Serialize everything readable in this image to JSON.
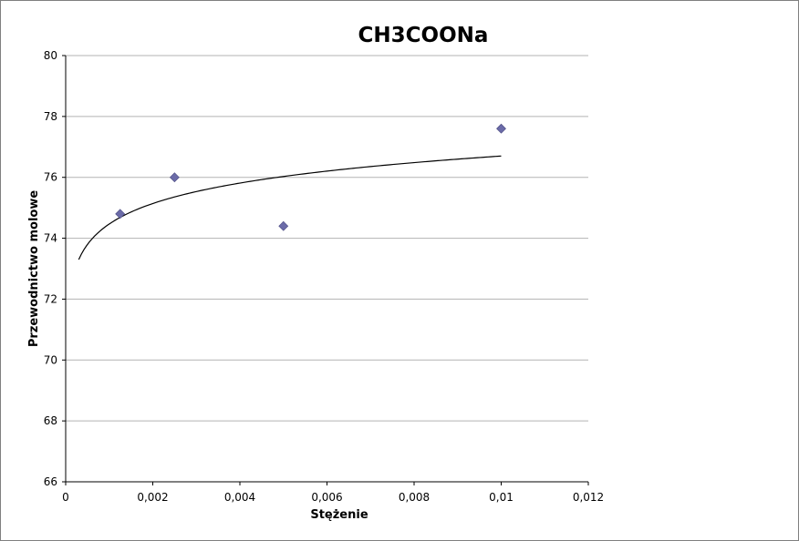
{
  "chart_data": {
    "type": "scatter",
    "title": "CH3COONa",
    "xlabel": "Stężenie",
    "ylabel": "Przewodnictwo molowe",
    "xlim": [
      0,
      0.012
    ],
    "ylim": [
      66,
      80
    ],
    "x_ticks": [
      0,
      0.002,
      0.004,
      0.006,
      0.008,
      0.01,
      0.012
    ],
    "x_tick_labels": [
      "0",
      "0,002",
      "0,004",
      "0,006",
      "0,008",
      "0,01",
      "0,012"
    ],
    "y_ticks": [
      66,
      68,
      70,
      72,
      74,
      76,
      78,
      80
    ],
    "y_tick_labels": [
      "66",
      "68",
      "70",
      "72",
      "74",
      "76",
      "78",
      "80"
    ],
    "grid": "horizontal",
    "legend": "none",
    "marker_color": "#6b6ba8",
    "trend_color": "#000000",
    "series": [
      {
        "marker": "diamond",
        "points": [
          {
            "x": 0.00125,
            "y": 74.8
          },
          {
            "x": 0.0025,
            "y": 76.0
          },
          {
            "x": 0.005,
            "y": 74.4
          },
          {
            "x": 0.01,
            "y": 77.6
          }
        ]
      }
    ],
    "trendline": {
      "type": "logarithmic",
      "x_range": [
        0.0003,
        0.01
      ],
      "y_start": 73.3,
      "y_end": 76.7
    }
  }
}
